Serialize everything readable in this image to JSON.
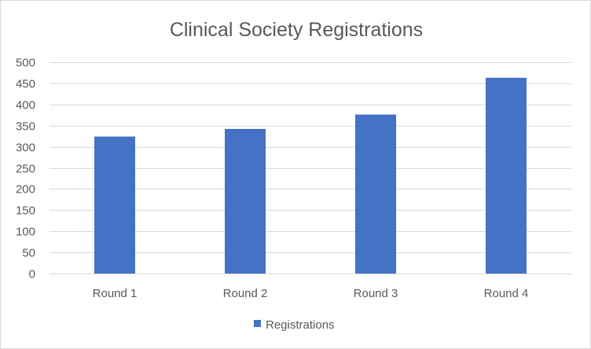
{
  "chart_data": {
    "type": "bar",
    "title": "Clinical Society Registrations",
    "categories": [
      "Round 1",
      "Round 2",
      "Round 3",
      "Round 4"
    ],
    "series": [
      {
        "name": "Registrations",
        "values": [
          324,
          342,
          376,
          463
        ],
        "color": "#4472c4"
      }
    ],
    "xlabel": "",
    "ylabel": "",
    "ylim": [
      0,
      500
    ],
    "yticks": [
      0,
      50,
      100,
      150,
      200,
      250,
      300,
      350,
      400,
      450,
      500
    ],
    "grid": true,
    "legend_position": "bottom"
  }
}
